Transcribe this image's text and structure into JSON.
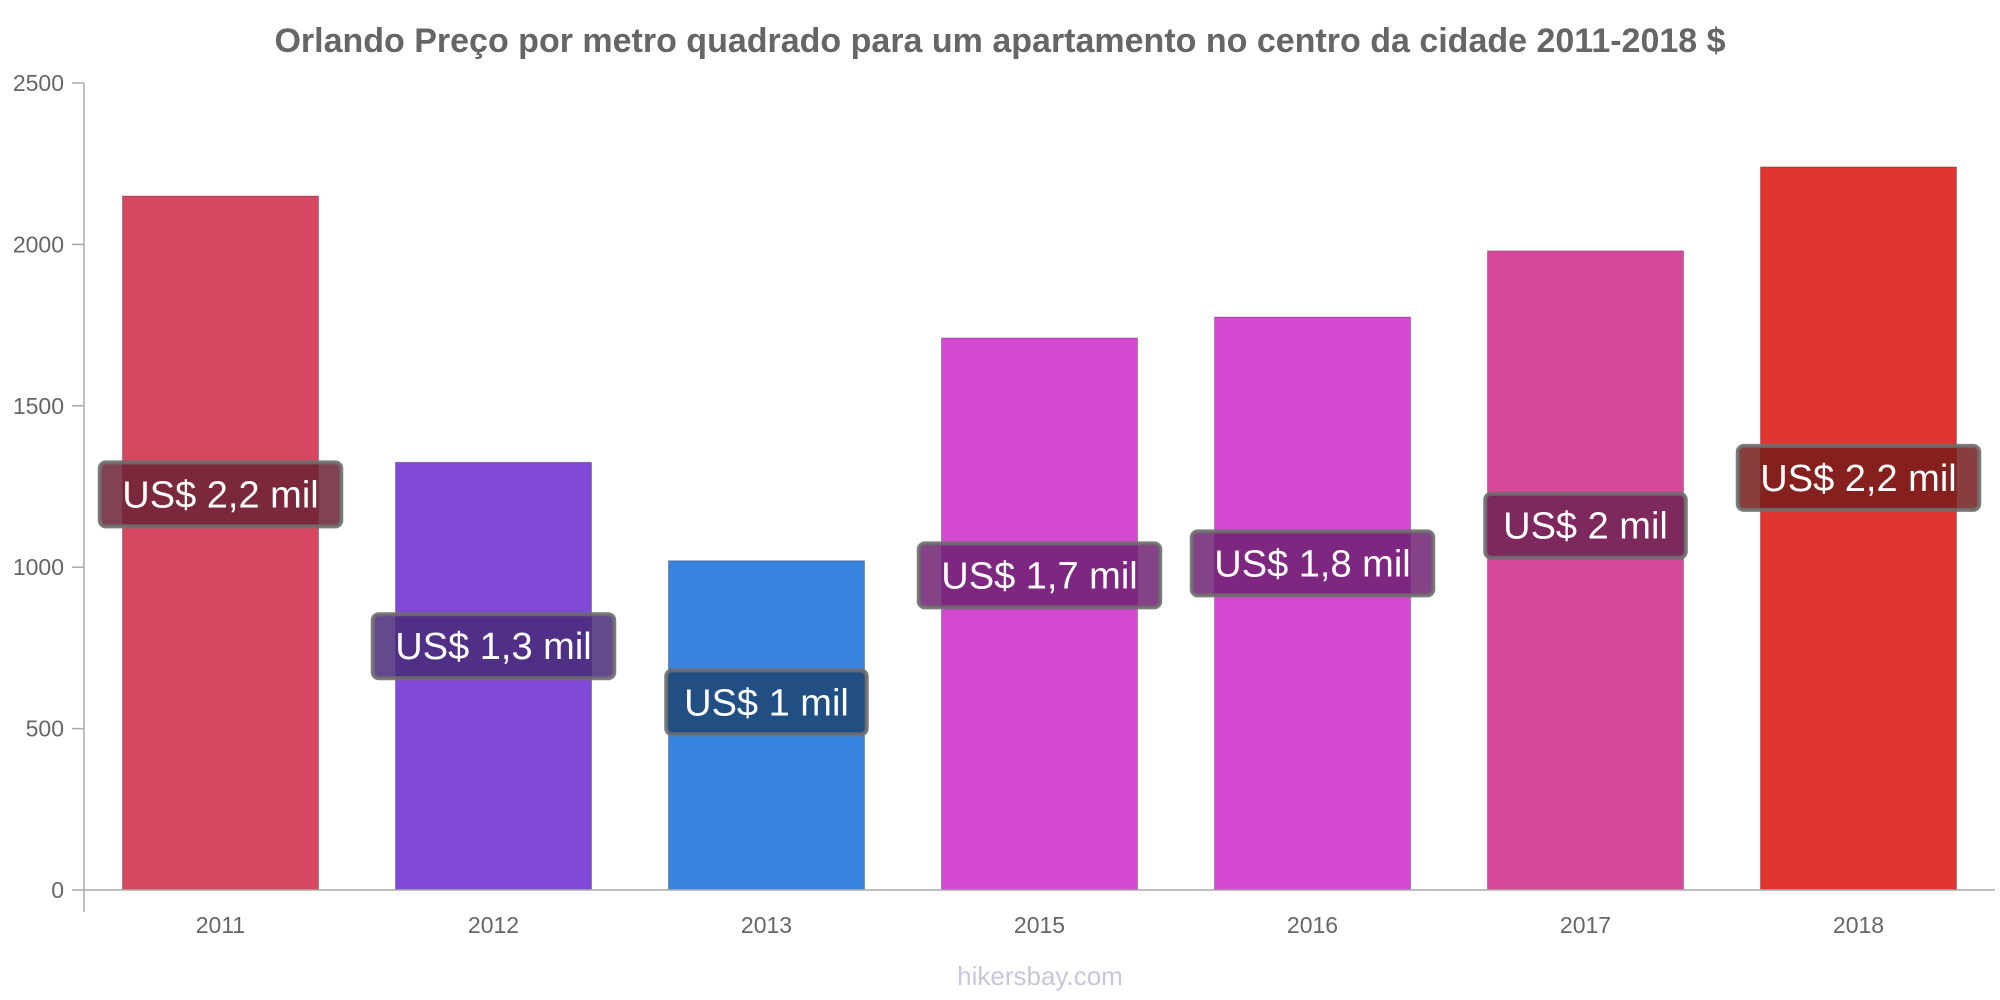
{
  "chart_data": {
    "type": "bar",
    "title": "Orlando Preço por metro quadrado para um apartamento no centro da cidade 2011-2018 $",
    "xlabel": "",
    "ylabel": "",
    "categories": [
      "2011",
      "2012",
      "2013",
      "2015",
      "2016",
      "2017",
      "2018"
    ],
    "values": [
      2150,
      1325,
      1020,
      1710,
      1775,
      1980,
      2240
    ],
    "data_labels": [
      "US$ 2,2 mil",
      "US$ 1,3 mil",
      "US$ 1 mil",
      "US$ 1,7 mil",
      "US$ 1,8 mil",
      "US$ 2 mil",
      "US$ 2,2 mil"
    ],
    "bar_colors": [
      "#d64862",
      "#8049d8",
      "#3684e0",
      "#d448d2",
      "#d448d2",
      "#d64799",
      "#e03533"
    ],
    "label_box_colors": [
      "#6b2236",
      "#482a78",
      "#1d4472",
      "#6e2272",
      "#6e2272",
      "#6e2452",
      "#741c1c"
    ],
    "ylim": [
      0,
      2500
    ],
    "yticks": [
      0,
      500,
      1000,
      1500,
      2000,
      2500
    ],
    "grid": false,
    "legend": "none"
  },
  "watermark": "hikersbay.com"
}
